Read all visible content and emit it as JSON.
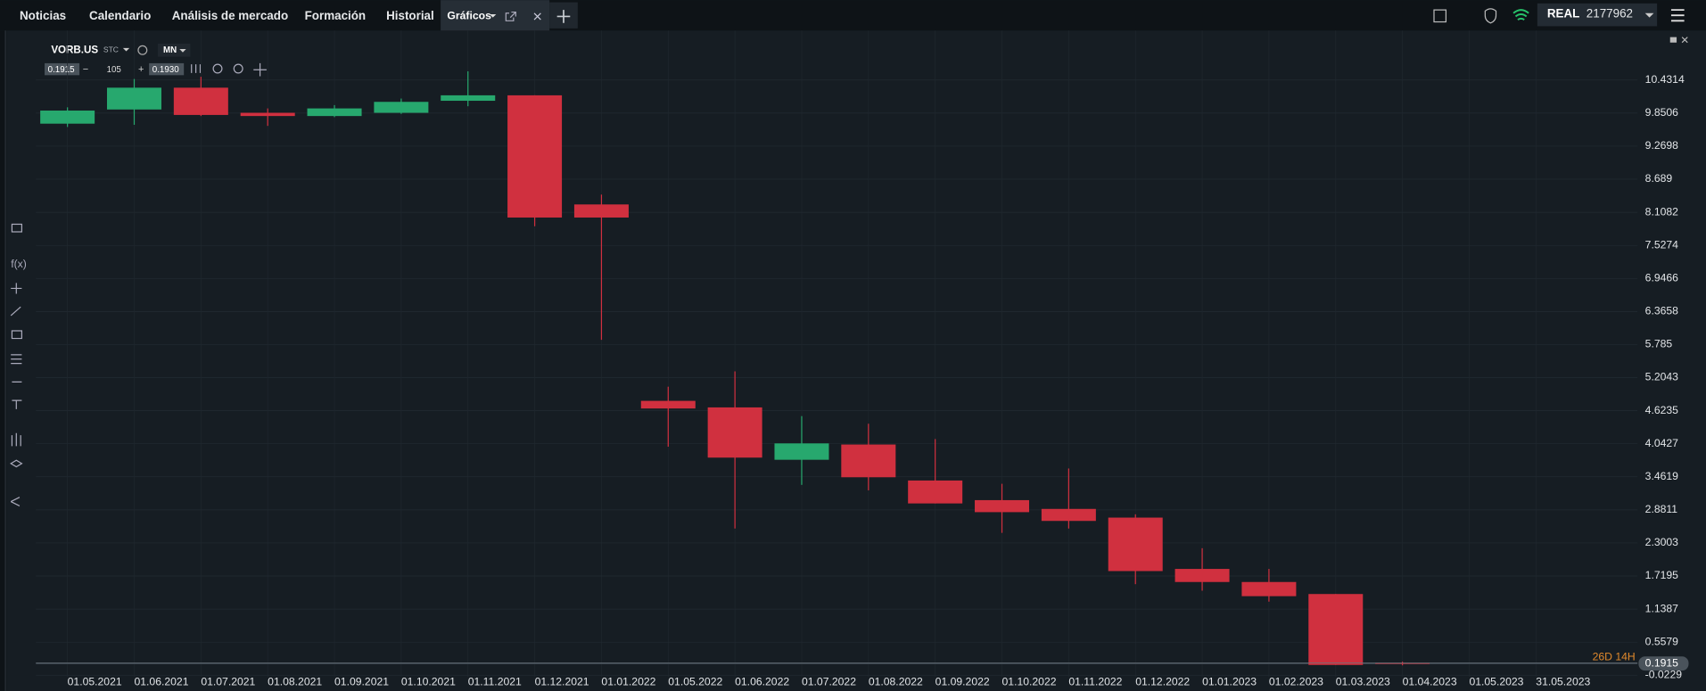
{
  "ui": {
    "tabs": [
      "Noticias",
      "Calendario",
      "Análisis de mercado",
      "Formación",
      "Historial",
      "Gráficos"
    ],
    "account_type": "REAL",
    "account_id": "2177962",
    "symbol": "VORB.US",
    "symbol_type": "STC",
    "timeframe": "MN",
    "bid": "0.1915",
    "spread": "105",
    "ask": "0.1930"
  },
  "chart_data": {
    "type": "candlestick",
    "x": [
      "01.05.2021",
      "01.06.2021",
      "01.07.2021",
      "01.08.2021",
      "01.09.2021",
      "01.10.2021",
      "01.11.2021",
      "01.12.2021",
      "01.01.2022",
      "01.05.2022",
      "01.06.2022",
      "01.07.2022",
      "01.08.2022",
      "01.09.2022",
      "01.10.2022",
      "01.11.2022",
      "01.12.2022",
      "01.01.2023",
      "01.02.2023",
      "01.03.2023",
      "01.04.2023",
      "01.05.2023",
      "31.05.2023"
    ],
    "open": [
      9.665,
      9.914,
      10.297,
      9.856,
      9.799,
      9.856,
      10.067,
      10.163,
      8.246,
      4.796,
      4.681,
      3.761,
      4.029,
      3.397,
      3.052,
      2.898,
      2.745,
      1.844,
      1.614,
      1.403,
      0.196,
      null,
      null
    ],
    "high": [
      9.952,
      10.45,
      10.489,
      9.933,
      9.991,
      10.106,
      10.585,
      10.163,
      8.419,
      5.045,
      5.314,
      4.528,
      4.394,
      4.125,
      3.339,
      3.608,
      2.803,
      2.208,
      1.844,
      1.403,
      0.215,
      null,
      null
    ],
    "low": [
      9.607,
      9.645,
      9.799,
      9.626,
      9.78,
      9.837,
      9.971,
      7.863,
      5.869,
      3.991,
      2.553,
      3.32,
      3.224,
      2.994,
      2.477,
      2.553,
      1.576,
      1.461,
      1.269,
      0.157,
      0.15,
      null,
      null
    ],
    "close": [
      9.895,
      10.297,
      9.818,
      9.799,
      9.933,
      10.048,
      10.163,
      8.016,
      8.016,
      4.662,
      3.799,
      4.049,
      3.454,
      2.994,
      2.841,
      2.687,
      1.806,
      1.614,
      1.365,
      0.157,
      0.1915,
      null,
      null
    ],
    "up_color": "#27a86e",
    "down_color": "#d0303f",
    "ylim": [
      -0.05,
      11.3
    ],
    "yticks": [
      10.4314,
      9.8506,
      9.2698,
      8.689,
      8.1082,
      7.5274,
      6.9466,
      6.3658,
      5.785,
      5.2043,
      4.6235,
      4.0427,
      3.4619,
      2.8811,
      2.3003,
      1.7195,
      1.1387,
      0.5579,
      -0.0229
    ],
    "grid": true,
    "countdown": "26D 14H"
  }
}
